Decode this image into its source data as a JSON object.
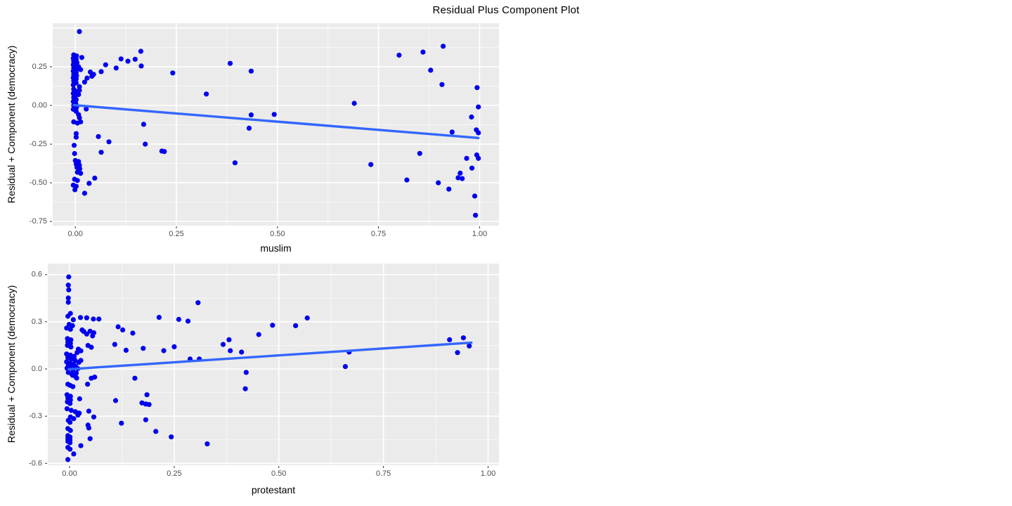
{
  "title": "Residual Plus Component Plot",
  "style": {
    "panel_bg": "#EBEBEB",
    "grid_major": "#FFFFFF",
    "grid_minor": "#F7F7F7",
    "point_color": "#0000EE",
    "trend_color": "#3366FF",
    "tick_color": "#333333",
    "tick_label_color": "#4D4D4D",
    "axis_title_color": "#000000"
  },
  "chart_data": [
    {
      "type": "scatter",
      "panel": "muslim",
      "xlabel": "muslim",
      "ylabel": "Residual + Component (democracy)",
      "legend": "none",
      "grid": "on",
      "xlim": [
        -0.056,
        1.048
      ],
      "ylim": [
        -0.777,
        0.532
      ],
      "x_major": [
        0,
        0.25,
        0.5,
        0.75,
        1.0
      ],
      "x_tick_labels": [
        "0.00",
        "0.25",
        "0.50",
        "0.75",
        "1.00"
      ],
      "x_minor": [
        0.125,
        0.375,
        0.625,
        0.875
      ],
      "y_major": [
        0.25,
        0.0,
        -0.25,
        -0.5,
        -0.75
      ],
      "y_tick_labels": [
        "0.25",
        "0.00",
        "-0.25",
        "-0.50",
        "-0.75"
      ],
      "y_major_unlabeled": [
        0.5
      ],
      "y_minor": [
        0.375,
        0.125,
        -0.125,
        -0.375,
        -0.625
      ],
      "trend": {
        "x1": -0.004,
        "y1": 0.002,
        "x2": 0.997,
        "y2": -0.21
      },
      "points": [
        [
          -0.004,
          0.327
        ],
        [
          0.003,
          0.32
        ],
        [
          0.016,
          0.31
        ],
        [
          -0.005,
          0.305
        ],
        [
          0.002,
          0.297
        ],
        [
          -0.004,
          0.285
        ],
        [
          0.004,
          0.277
        ],
        [
          -0.005,
          0.264
        ],
        [
          0.002,
          0.256
        ],
        [
          0.008,
          0.25
        ],
        [
          -0.004,
          0.243
        ],
        [
          0.003,
          0.235
        ],
        [
          0.013,
          0.232
        ],
        [
          -0.005,
          0.222
        ],
        [
          0.002,
          0.214
        ],
        [
          -0.004,
          0.2
        ],
        [
          0.003,
          0.192
        ],
        [
          -0.005,
          0.179
        ],
        [
          0.002,
          0.171
        ],
        [
          -0.004,
          0.158
        ],
        [
          0.002,
          0.146
        ],
        [
          -0.005,
          0.133
        ],
        [
          0.01,
          0.121
        ],
        [
          -0.004,
          0.105
        ],
        [
          0.01,
          0.098
        ],
        [
          0.002,
          0.091
        ],
        [
          -0.005,
          0.078
        ],
        [
          0.008,
          0.071
        ],
        [
          0.001,
          0.064
        ],
        [
          -0.004,
          0.051
        ],
        [
          0.002,
          0.038
        ],
        [
          -0.005,
          0.025
        ],
        [
          0.001,
          0.013
        ],
        [
          -0.004,
          0.0
        ],
        [
          0.003,
          -0.012
        ],
        [
          -0.005,
          -0.025
        ],
        [
          0.002,
          -0.038
        ],
        [
          0.027,
          -0.023
        ],
        [
          0.008,
          -0.06
        ],
        [
          0.01,
          -0.08
        ],
        [
          -0.004,
          -0.106
        ],
        [
          0.005,
          -0.114
        ],
        [
          0.013,
          -0.106
        ],
        [
          0.002,
          -0.182
        ],
        [
          0.01,
          0.478
        ],
        [
          0.023,
          0.151
        ],
        [
          0.029,
          0.177
        ],
        [
          0.037,
          0.216
        ],
        [
          0.041,
          0.189
        ],
        [
          0.045,
          0.201
        ],
        [
          0.064,
          0.219
        ],
        [
          0.075,
          0.263
        ],
        [
          0.101,
          0.242
        ],
        [
          0.113,
          0.301
        ],
        [
          0.13,
          0.286
        ],
        [
          0.148,
          0.299
        ],
        [
          0.162,
          0.35
        ],
        [
          0.163,
          0.255
        ],
        [
          0.241,
          0.21
        ],
        [
          0.383,
          0.272
        ],
        [
          0.435,
          0.222
        ],
        [
          0.324,
          0.074
        ],
        [
          0.69,
          0.014
        ],
        [
          0.801,
          0.325
        ],
        [
          0.86,
          0.345
        ],
        [
          0.91,
          0.383
        ],
        [
          0.879,
          0.228
        ],
        [
          0.907,
          0.135
        ],
        [
          0.994,
          0.115
        ],
        [
          0.997,
          -0.01
        ],
        [
          0.002,
          -0.205
        ],
        [
          -0.003,
          -0.258
        ],
        [
          -0.002,
          -0.311
        ],
        [
          0.057,
          -0.201
        ],
        [
          0.083,
          -0.235
        ],
        [
          0.064,
          -0.303
        ],
        [
          0.173,
          -0.25
        ],
        [
          0.214,
          -0.295
        ],
        [
          0.22,
          -0.298
        ],
        [
          0.169,
          -0.122
        ],
        [
          0.435,
          -0.061
        ],
        [
          0.492,
          -0.058
        ],
        [
          0.43,
          -0.147
        ],
        [
          0.395,
          -0.371
        ],
        [
          0.731,
          -0.382
        ],
        [
          0.0,
          -0.356
        ],
        [
          0.008,
          -0.363
        ],
        [
          0.002,
          -0.379
        ],
        [
          0.01,
          -0.386
        ],
        [
          0.004,
          -0.401
        ],
        [
          0.011,
          -0.409
        ],
        [
          0.005,
          -0.432
        ],
        [
          0.013,
          -0.439
        ],
        [
          -0.002,
          -0.477
        ],
        [
          0.005,
          -0.485
        ],
        [
          -0.005,
          -0.515
        ],
        [
          0.002,
          -0.523
        ],
        [
          -0.001,
          -0.545
        ],
        [
          0.048,
          -0.47
        ],
        [
          0.034,
          -0.504
        ],
        [
          0.023,
          -0.568
        ],
        [
          0.98,
          -0.075
        ],
        [
          0.932,
          -0.172
        ],
        [
          0.992,
          -0.158
        ],
        [
          0.997,
          -0.177
        ],
        [
          0.852,
          -0.31
        ],
        [
          0.993,
          -0.32
        ],
        [
          0.968,
          -0.342
        ],
        [
          0.997,
          -0.342
        ],
        [
          0.981,
          -0.405
        ],
        [
          0.82,
          -0.482
        ],
        [
          0.898,
          -0.5
        ],
        [
          0.952,
          -0.438
        ],
        [
          0.947,
          -0.468
        ],
        [
          0.957,
          -0.473
        ],
        [
          0.924,
          -0.541
        ],
        [
          0.988,
          -0.586
        ],
        [
          0.99,
          -0.71
        ]
      ]
    },
    {
      "type": "scatter",
      "panel": "protestant",
      "xlabel": "protestant",
      "ylabel": "Residual + Component (democracy)",
      "legend": "none",
      "grid": "on",
      "xlim": [
        -0.052,
        1.026
      ],
      "ylim": [
        -0.612,
        0.67
      ],
      "x_major": [
        0,
        0.25,
        0.5,
        0.75,
        1.0
      ],
      "x_tick_labels": [
        "0.00",
        "0.25",
        "0.50",
        "0.75",
        "1.00"
      ],
      "x_minor": [
        0.125,
        0.375,
        0.625,
        0.875
      ],
      "y_major": [
        0.6,
        0.3,
        0.0,
        -0.3,
        -0.6
      ],
      "y_tick_labels": [
        "0.6",
        "0.3",
        "0.0",
        "-0.3",
        "-0.6"
      ],
      "y_major_unlabeled": [],
      "y_minor": [
        0.45,
        0.15,
        -0.15,
        -0.45
      ],
      "trend": {
        "x1": -0.002,
        "y1": -0.002,
        "x2": 0.96,
        "y2": 0.167
      },
      "points": [
        [
          -0.002,
          0.585
        ],
        [
          -0.003,
          0.533
        ],
        [
          -0.002,
          0.503
        ],
        [
          -0.003,
          0.451
        ],
        [
          -0.003,
          0.424
        ],
        [
          0.002,
          0.353
        ],
        [
          -0.004,
          0.335
        ],
        [
          0.009,
          0.313
        ],
        [
          0.026,
          0.327
        ],
        [
          0.041,
          0.325
        ],
        [
          0.057,
          0.317
        ],
        [
          0.07,
          0.317
        ],
        [
          -0.001,
          0.283
        ],
        [
          0.007,
          0.275
        ],
        [
          -0.007,
          0.26
        ],
        [
          0.002,
          0.252
        ],
        [
          0.03,
          0.248
        ],
        [
          0.049,
          0.24
        ],
        [
          0.058,
          0.23
        ],
        [
          0.041,
          0.222
        ],
        [
          0.034,
          0.238
        ],
        [
          0.055,
          0.21
        ],
        [
          -0.005,
          0.193
        ],
        [
          0.003,
          0.185
        ],
        [
          -0.004,
          0.172
        ],
        [
          0.002,
          0.163
        ],
        [
          -0.005,
          0.15
        ],
        [
          0.003,
          0.14
        ],
        [
          0.044,
          0.149
        ],
        [
          0.052,
          0.138
        ],
        [
          0.021,
          0.126
        ],
        [
          0.027,
          0.115
        ],
        [
          0.018,
          0.104
        ],
        [
          -0.007,
          0.095
        ],
        [
          0.002,
          0.088
        ],
        [
          0.011,
          0.08
        ],
        [
          -0.004,
          0.072
        ],
        [
          0.004,
          0.063
        ],
        [
          0.013,
          0.055
        ],
        [
          -0.007,
          0.045
        ],
        [
          0.001,
          0.037
        ],
        [
          0.01,
          0.03
        ],
        [
          0.022,
          0.042
        ],
        [
          0.027,
          0.054
        ],
        [
          -0.003,
          0.022
        ],
        [
          0.005,
          0.012
        ],
        [
          -0.006,
          0.005
        ],
        [
          0.015,
          0.015
        ],
        [
          0.02,
          0.002
        ],
        [
          0.008,
          -0.005
        ],
        [
          -0.003,
          -0.022
        ],
        [
          0.005,
          -0.032
        ],
        [
          0.016,
          -0.026
        ],
        [
          0.007,
          -0.04
        ],
        [
          0.014,
          -0.048
        ],
        [
          0.017,
          -0.058
        ],
        [
          -0.004,
          -0.097
        ],
        [
          0.001,
          -0.104
        ],
        [
          0.008,
          -0.112
        ],
        [
          0.043,
          -0.097
        ],
        [
          0.052,
          -0.059
        ],
        [
          0.06,
          -0.052
        ],
        [
          -0.006,
          -0.164
        ],
        [
          0.002,
          -0.174
        ],
        [
          -0.004,
          -0.186
        ],
        [
          0.002,
          -0.197
        ],
        [
          -0.005,
          -0.209
        ],
        [
          0.001,
          -0.22
        ],
        [
          0.024,
          -0.19
        ],
        [
          -0.006,
          -0.253
        ],
        [
          0.004,
          -0.263
        ],
        [
          0.014,
          -0.272
        ],
        [
          0.023,
          -0.281
        ],
        [
          0.02,
          -0.293
        ],
        [
          0.002,
          -0.305
        ],
        [
          0.01,
          -0.316
        ],
        [
          -0.003,
          -0.327
        ],
        [
          0.001,
          -0.339
        ],
        [
          0.058,
          -0.305
        ],
        [
          0.046,
          -0.268
        ],
        [
          0.044,
          -0.357
        ],
        [
          -0.004,
          -0.379
        ],
        [
          0.002,
          -0.391
        ],
        [
          0.046,
          -0.375
        ],
        [
          -0.004,
          -0.424
        ],
        [
          0.001,
          -0.433
        ],
        [
          -0.004,
          -0.442
        ],
        [
          0.001,
          -0.451
        ],
        [
          -0.004,
          -0.46
        ],
        [
          0.001,
          -0.469
        ],
        [
          0.049,
          -0.443
        ],
        [
          0.027,
          -0.488
        ],
        [
          -0.004,
          -0.499
        ],
        [
          0.001,
          -0.51
        ],
        [
          0.01,
          -0.54
        ],
        [
          -0.004,
          -0.576
        ],
        [
          0.108,
          0.156
        ],
        [
          0.116,
          0.268
        ],
        [
          0.127,
          0.248
        ],
        [
          0.151,
          0.228
        ],
        [
          0.135,
          0.119
        ],
        [
          0.176,
          0.131
        ],
        [
          0.214,
          0.328
        ],
        [
          0.261,
          0.315
        ],
        [
          0.283,
          0.304
        ],
        [
          0.225,
          0.116
        ],
        [
          0.25,
          0.141
        ],
        [
          0.288,
          0.063
        ],
        [
          0.31,
          0.063
        ],
        [
          0.307,
          0.421
        ],
        [
          0.367,
          0.156
        ],
        [
          0.381,
          0.186
        ],
        [
          0.384,
          0.116
        ],
        [
          0.411,
          0.107
        ],
        [
          0.452,
          0.219
        ],
        [
          0.485,
          0.278
        ],
        [
          0.54,
          0.275
        ],
        [
          0.568,
          0.324
        ],
        [
          0.659,
          0.015
        ],
        [
          0.668,
          0.107
        ],
        [
          0.908,
          0.186
        ],
        [
          0.941,
          0.198
        ],
        [
          0.955,
          0.146
        ],
        [
          0.927,
          0.104
        ],
        [
          0.422,
          -0.022
        ],
        [
          0.42,
          -0.126
        ],
        [
          0.156,
          -0.059
        ],
        [
          0.11,
          -0.201
        ],
        [
          0.173,
          -0.216
        ],
        [
          0.182,
          -0.223
        ],
        [
          0.19,
          -0.226
        ],
        [
          0.185,
          -0.164
        ],
        [
          0.124,
          -0.345
        ],
        [
          0.182,
          -0.323
        ],
        [
          0.206,
          -0.397
        ],
        [
          0.243,
          -0.432
        ],
        [
          0.329,
          -0.476
        ]
      ]
    }
  ]
}
